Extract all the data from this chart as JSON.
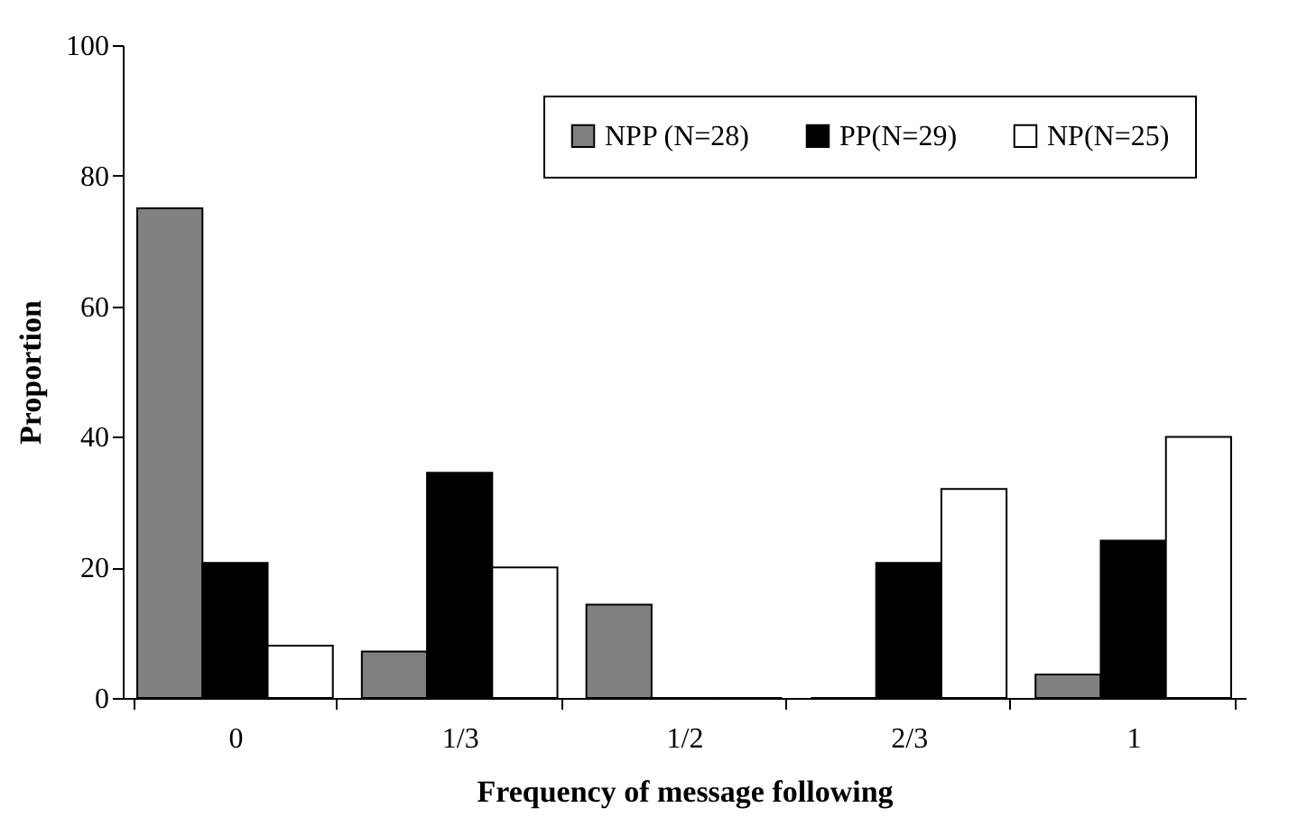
{
  "chart_data": {
    "type": "bar",
    "xlabel": "Frequency of message following",
    "ylabel": "Proportion",
    "categories": [
      "0",
      "1/3",
      "1/2",
      "2/3",
      "1"
    ],
    "series": [
      {
        "name": "NPP (N=28)",
        "color": "#808080",
        "values": [
          75,
          7.1,
          14.3,
          0,
          3.6
        ]
      },
      {
        "name": "PP(N=29)",
        "color": "#000000",
        "values": [
          20.7,
          34.5,
          0,
          20.7,
          24.1
        ]
      },
      {
        "name": "NP(N=25)",
        "color": "#ffffff",
        "values": [
          8,
          20,
          0,
          32,
          40
        ]
      }
    ],
    "ylim": [
      0,
      100
    ],
    "yticks": [
      0,
      20,
      40,
      60,
      80,
      100
    ],
    "legend": "top right",
    "grid": false
  }
}
